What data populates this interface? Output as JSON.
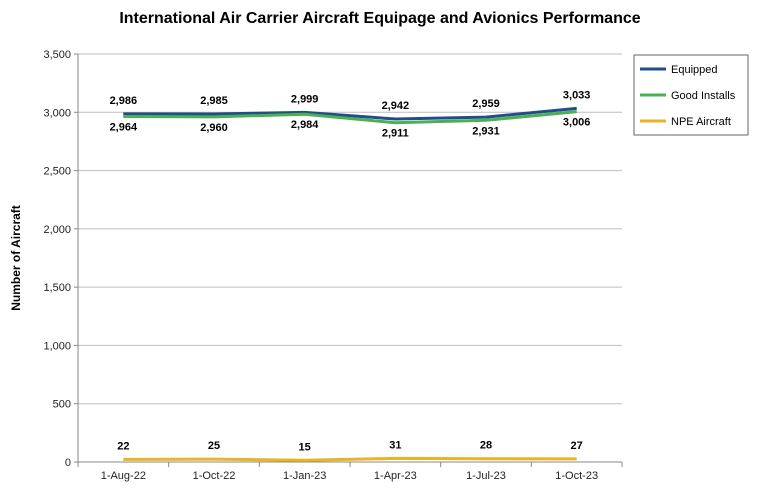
{
  "chart_data": {
    "type": "line",
    "title": "International Air Carrier Aircraft Equipage and Avionics Performance",
    "xlabel": "",
    "ylabel": "Number of Aircraft",
    "categories": [
      "1-Aug-22",
      "1-Oct-22",
      "1-Jan-23",
      "1-Apr-23",
      "1-Jul-23",
      "1-Oct-23"
    ],
    "ylim": [
      0,
      3500
    ],
    "yticks": [
      0,
      500,
      1000,
      1500,
      2000,
      2500,
      3000,
      3500
    ],
    "ytick_labels": [
      "0",
      "500",
      "1,000",
      "1,500",
      "2,000",
      "2,500",
      "3,000",
      "3,500"
    ],
    "grid": true,
    "legend_position": "top-right",
    "series": [
      {
        "name": "Equipped",
        "color": "#1f4e8c",
        "values": [
          2986,
          2985,
          2999,
          2942,
          2959,
          3033
        ],
        "labels": [
          "2,986",
          "2,985",
          "2,999",
          "2,942",
          "2,959",
          "3,033"
        ],
        "label_side": "above"
      },
      {
        "name": "Good Installs",
        "color": "#4caf50",
        "values": [
          2964,
          2960,
          2984,
          2911,
          2931,
          3006
        ],
        "labels": [
          "2,964",
          "2,960",
          "2,984",
          "2,911",
          "2,931",
          "3,006"
        ],
        "label_side": "below"
      },
      {
        "name": "NPE Aircraft",
        "color": "#e8b422",
        "values": [
          22,
          25,
          15,
          31,
          28,
          27
        ],
        "labels": [
          "22",
          "25",
          "15",
          "31",
          "28",
          "27"
        ],
        "label_side": "above"
      }
    ]
  }
}
